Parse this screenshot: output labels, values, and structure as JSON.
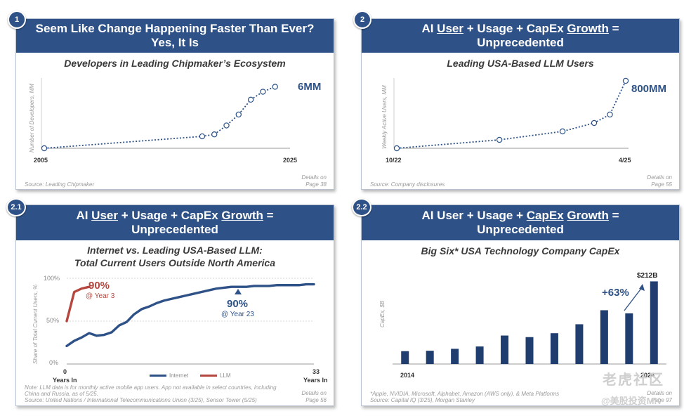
{
  "colors": {
    "header_bg": "#2e5287",
    "internet": "#2e5287",
    "llm": "#b5473f",
    "bar": "#1f3d6e"
  },
  "panels": [
    {
      "badge": "1",
      "header_line1": "Seem Like Change Happening Faster Than Ever?",
      "header_line2": "Yes, It Is",
      "subtitle": "Developers in Leading Chipmaker’s Ecosystem",
      "source": "Source: Leading Chipmaker",
      "details_line1": "Details on",
      "details_line2": "Page 38"
    },
    {
      "badge": "2",
      "header_pre1": "AI ",
      "header_u1": "User",
      "header_mid": " + Usage + CapEx ",
      "header_u2": "Growth",
      "header_post": " =",
      "header_line2": "Unprecedented",
      "subtitle": "Leading USA-Based LLM Users",
      "source": "Source: Company disclosures",
      "details_line1": "Details on",
      "details_line2": "Page 55"
    },
    {
      "badge": "2.1",
      "header_pre1": "AI ",
      "header_u1": "User",
      "header_mid": " + Usage + CapEx ",
      "header_u2": "Growth",
      "header_post": " =",
      "header_line2": "Unprecedented",
      "subtitle_line1": "Internet vs. Leading USA-Based LLM:",
      "subtitle_line2": "Total Current Users Outside North America",
      "note_line1": "Note: LLM data is for monthly active mobile app users. App not available in select countries, including",
      "note_line2": "China and Russia, as of 5/25.",
      "source": "Source: United Nations / International Telecommunications Union (3/25), Sensor Tower (5/25)",
      "details_line1": "Details on",
      "details_line2": "Page 56"
    },
    {
      "badge": "2.2",
      "header_pre1": "AI ",
      "header_mid1": "User + Usage + ",
      "header_u1": "CapEx",
      "header_sp": " ",
      "header_u2": "Growth",
      "header_post": " =",
      "header_line2": "Unprecedented",
      "subtitle": "Big Six* USA Technology Company CapEx",
      "note": "*Apple, NVIDIA, Microsoft, Alphabet, Amazon (AWS only), & Meta Platforms",
      "source": "Source: Capital IQ (3/25), Morgan Stanley",
      "details_line1": "Details on",
      "details_line2": "Page 97"
    }
  ],
  "chart_data": [
    {
      "type": "scatter",
      "title": "Developers in Leading Chipmaker’s Ecosystem",
      "ylabel": "Number of Developers, MM",
      "x_tick_labels": [
        "2005",
        "2025"
      ],
      "xlim": [
        2005,
        2025
      ],
      "ylim": [
        0,
        6.8
      ],
      "x": [
        2005,
        2018,
        2019,
        2020,
        2021,
        2022,
        2023,
        2024
      ],
      "y": [
        0.0,
        1.2,
        1.4,
        2.3,
        3.4,
        4.9,
        5.7,
        6.2
      ],
      "annotation": "6MM"
    },
    {
      "type": "scatter",
      "title": "Leading USA-Based LLM Users",
      "ylabel": "Weekly Active Users, MM",
      "x_tick_labels": [
        "10/22",
        "4/25"
      ],
      "xlim": [
        0,
        29
      ],
      "ylim": [
        0,
        800
      ],
      "x": [
        0,
        13,
        21,
        25,
        27,
        29
      ],
      "y": [
        0,
        100,
        200,
        300,
        400,
        800
      ],
      "annotation": "800MM"
    },
    {
      "type": "line",
      "title": "Internet vs. Leading USA-Based LLM: Total Current Users Outside North America",
      "ylabel": "Share of Total Current Users, %",
      "xlabel_left": "0",
      "xlabel_left_sub": "Years In",
      "xlabel_right": "33",
      "xlabel_right_sub": "Years In",
      "xlim": [
        0,
        33
      ],
      "ylim": [
        0,
        100
      ],
      "y_ticks": [
        "0%",
        "50%",
        "100%"
      ],
      "series": [
        {
          "name": "Internet",
          "x": [
            0,
            1,
            2,
            3,
            4,
            5,
            6,
            7,
            8,
            9,
            10,
            11,
            12,
            13,
            14,
            15,
            16,
            17,
            18,
            19,
            20,
            21,
            22,
            23,
            24,
            25,
            26,
            27,
            28,
            29,
            30,
            31,
            32,
            33
          ],
          "values": [
            21,
            27,
            31,
            36,
            33,
            34,
            37,
            45,
            49,
            58,
            64,
            67,
            71,
            74,
            76,
            78,
            80,
            82,
            84,
            86,
            88,
            89,
            90,
            90,
            90,
            91,
            91,
            91,
            92,
            92,
            92,
            92,
            93,
            93
          ]
        },
        {
          "name": "LLM",
          "x": [
            0,
            1,
            2,
            3
          ],
          "values": [
            50,
            84,
            88,
            90
          ]
        }
      ],
      "annotations": [
        {
          "text": "90%",
          "sub": "@ Year 3"
        },
        {
          "text": "90%",
          "sub": "@ Year 23"
        }
      ]
    },
    {
      "type": "bar",
      "title": "Big Six* USA Technology Company CapEx",
      "ylabel": "CapEx, $B",
      "categories": [
        "2014",
        "2015",
        "2016",
        "2017",
        "2018",
        "2019",
        "2020",
        "2021",
        "2022",
        "2023",
        "2024"
      ],
      "x_tick_labels": [
        "2014",
        "2024"
      ],
      "values": [
        33,
        34,
        39,
        45,
        73,
        69,
        79,
        102,
        138,
        130,
        212
      ],
      "ylim": [
        0,
        220
      ],
      "annotations": [
        "$212B",
        "+63%"
      ]
    }
  ],
  "watermark": {
    "line1": "老虎社区",
    "line2": "@美股投资MK"
  }
}
